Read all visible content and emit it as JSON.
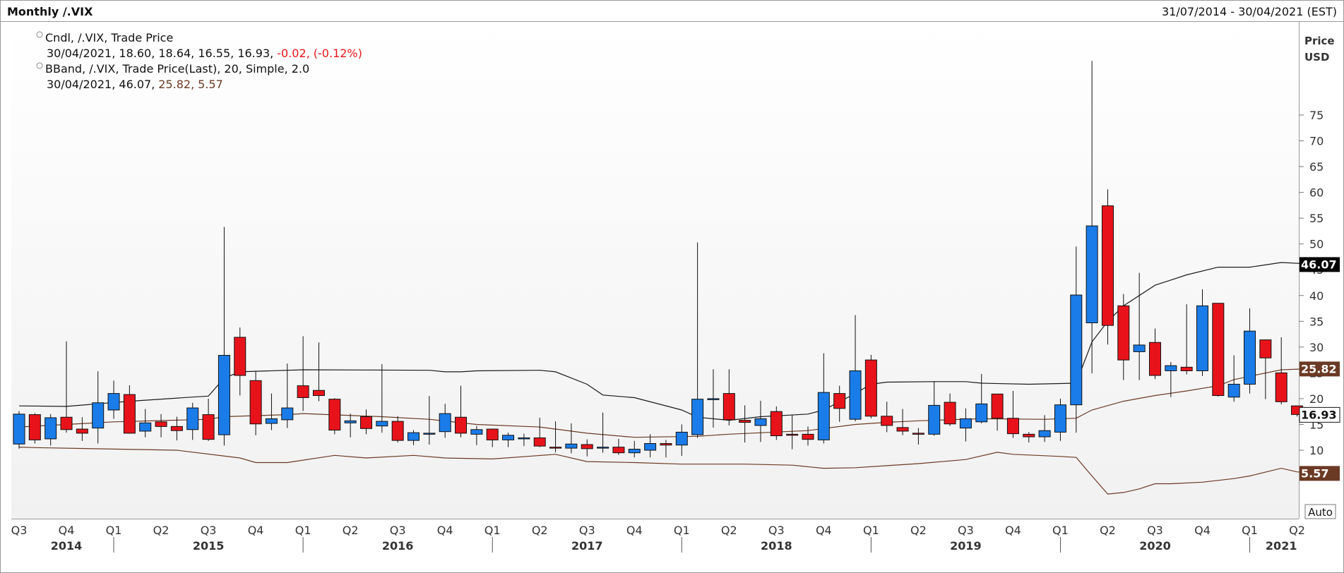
{
  "header": {
    "title": "Monthly /.VIX",
    "date_range": "31/07/2014 - 30/04/2021 (EST)"
  },
  "legend": {
    "candle_line1": "Cndl, /.VIX, Trade Price",
    "candle_line2_values": "30/04/2021, 18.60, 18.64, 16.55, 16.93,",
    "candle_line2_change": "-0.02, (-0.12%)",
    "bband_line1": "BBand, /.VIX, Trade Price(Last),  20, Simple, 2.0",
    "bband_line2_date": "30/04/2021, 46.07,",
    "bband_line2_mid": "25.82,",
    "bband_line2_low": "5.57"
  },
  "axis": {
    "price_label": "Price",
    "currency_label": "USD",
    "auto_button": "Auto"
  },
  "colors": {
    "up": "#1a7ce8",
    "down": "#e8131a",
    "upper_band": "#1a1a1a",
    "mid_band": "#6b3a24",
    "lower_band": "#6b3a24",
    "last_price_box": "#6b3a24",
    "upper_box": "#000000"
  },
  "chart_data": {
    "type": "candlestick",
    "title": "Monthly /.VIX",
    "y_axis_label": "Price USD",
    "y_ticks": [
      10,
      15,
      20,
      25,
      30,
      35,
      40,
      45,
      50,
      55,
      60,
      65,
      70,
      75
    ],
    "ylim": [
      1.5,
      82
    ],
    "x_quarter_ticks": [
      "Q3",
      "Q4",
      "Q1",
      "Q2",
      "Q3",
      "Q4",
      "Q1",
      "Q2",
      "Q3",
      "Q4",
      "Q1",
      "Q2",
      "Q3",
      "Q4",
      "Q1",
      "Q2",
      "Q3",
      "Q4",
      "Q1",
      "Q2",
      "Q3",
      "Q4",
      "Q1",
      "Q2",
      "Q3",
      "Q4",
      "Q1",
      "Q2"
    ],
    "x_year_labels": [
      "2014",
      "2015",
      "2016",
      "2017",
      "2018",
      "2019",
      "2020",
      "2021"
    ],
    "value_labels": {
      "upper_band": "46.07",
      "mid_band": "25.82",
      "last_price": "16.93",
      "lower_band": "5.57"
    },
    "candles": [
      {
        "month": "2014-07",
        "open": 11.2,
        "high": 17.6,
        "low": 10.3,
        "close": 17.0
      },
      {
        "month": "2014-08",
        "open": 16.9,
        "high": 17.2,
        "low": 11.3,
        "close": 12.0
      },
      {
        "month": "2014-09",
        "open": 12.2,
        "high": 17.0,
        "low": 10.9,
        "close": 16.3
      },
      {
        "month": "2014-10",
        "open": 16.4,
        "high": 31.1,
        "low": 13.4,
        "close": 14.0
      },
      {
        "month": "2014-11",
        "open": 14.1,
        "high": 16.4,
        "low": 11.8,
        "close": 13.3
      },
      {
        "month": "2014-12",
        "open": 14.3,
        "high": 25.3,
        "low": 11.3,
        "close": 19.2
      },
      {
        "month": "2015-01",
        "open": 17.8,
        "high": 23.5,
        "low": 16.1,
        "close": 21.0
      },
      {
        "month": "2015-02",
        "open": 20.8,
        "high": 22.6,
        "low": 13.2,
        "close": 13.3
      },
      {
        "month": "2015-03",
        "open": 13.7,
        "high": 18.0,
        "low": 12.5,
        "close": 15.3
      },
      {
        "month": "2015-04",
        "open": 15.5,
        "high": 17.0,
        "low": 12.5,
        "close": 14.6
      },
      {
        "month": "2015-05",
        "open": 14.6,
        "high": 16.5,
        "low": 11.9,
        "close": 13.8
      },
      {
        "month": "2015-06",
        "open": 14.0,
        "high": 19.2,
        "low": 12.0,
        "close": 18.2
      },
      {
        "month": "2015-07",
        "open": 16.9,
        "high": 20.0,
        "low": 11.8,
        "close": 12.1
      },
      {
        "month": "2015-08",
        "open": 13.0,
        "high": 53.3,
        "low": 10.9,
        "close": 28.4
      },
      {
        "month": "2015-09",
        "open": 31.9,
        "high": 33.8,
        "low": 20.6,
        "close": 24.5
      },
      {
        "month": "2015-10",
        "open": 23.5,
        "high": 25.4,
        "low": 12.9,
        "close": 15.1
      },
      {
        "month": "2015-11",
        "open": 15.2,
        "high": 21.0,
        "low": 13.9,
        "close": 16.1
      },
      {
        "month": "2015-12",
        "open": 15.9,
        "high": 26.8,
        "low": 14.3,
        "close": 18.2
      },
      {
        "month": "2016-01",
        "open": 22.5,
        "high": 32.1,
        "low": 17.6,
        "close": 20.2
      },
      {
        "month": "2016-02",
        "open": 21.6,
        "high": 30.9,
        "low": 19.5,
        "close": 20.6
      },
      {
        "month": "2016-03",
        "open": 19.9,
        "high": 20.1,
        "low": 13.1,
        "close": 13.9
      },
      {
        "month": "2016-04",
        "open": 15.3,
        "high": 17.1,
        "low": 12.5,
        "close": 15.7
      },
      {
        "month": "2016-05",
        "open": 16.5,
        "high": 17.9,
        "low": 13.1,
        "close": 14.2
      },
      {
        "month": "2016-06",
        "open": 14.7,
        "high": 26.7,
        "low": 13.4,
        "close": 15.6
      },
      {
        "month": "2016-07",
        "open": 15.6,
        "high": 16.6,
        "low": 11.5,
        "close": 11.9
      },
      {
        "month": "2016-08",
        "open": 11.9,
        "high": 13.9,
        "low": 11.0,
        "close": 13.4
      },
      {
        "month": "2016-09",
        "open": 13.2,
        "high": 20.5,
        "low": 11.1,
        "close": 13.3
      },
      {
        "month": "2016-10",
        "open": 13.6,
        "high": 19.0,
        "low": 12.4,
        "close": 17.1
      },
      {
        "month": "2016-11",
        "open": 16.4,
        "high": 22.5,
        "low": 12.5,
        "close": 13.3
      },
      {
        "month": "2016-12",
        "open": 13.1,
        "high": 14.7,
        "low": 11.0,
        "close": 14.0
      },
      {
        "month": "2017-01",
        "open": 14.1,
        "high": 14.2,
        "low": 10.6,
        "close": 11.99
      },
      {
        "month": "2017-02",
        "open": 12.0,
        "high": 13.4,
        "low": 10.6,
        "close": 12.9
      },
      {
        "month": "2017-03",
        "open": 12.4,
        "high": 13.2,
        "low": 10.8,
        "close": 12.4
      },
      {
        "month": "2017-04",
        "open": 12.4,
        "high": 16.3,
        "low": 10.6,
        "close": 10.8
      },
      {
        "month": "2017-05",
        "open": 10.6,
        "high": 15.6,
        "low": 9.6,
        "close": 10.4
      },
      {
        "month": "2017-06",
        "open": 10.4,
        "high": 15.2,
        "low": 9.4,
        "close": 11.2
      },
      {
        "month": "2017-07",
        "open": 11.1,
        "high": 12.1,
        "low": 8.8,
        "close": 10.3
      },
      {
        "month": "2017-08",
        "open": 10.5,
        "high": 17.3,
        "low": 9.5,
        "close": 10.6
      },
      {
        "month": "2017-09",
        "open": 10.6,
        "high": 12.2,
        "low": 9.1,
        "close": 9.5
      },
      {
        "month": "2017-10",
        "open": 9.5,
        "high": 11.8,
        "low": 8.6,
        "close": 10.2
      },
      {
        "month": "2017-11",
        "open": 10.0,
        "high": 13.1,
        "low": 8.6,
        "close": 11.3
      },
      {
        "month": "2017-12",
        "open": 11.3,
        "high": 12.0,
        "low": 8.6,
        "close": 11.0
      },
      {
        "month": "2018-01",
        "open": 11.0,
        "high": 15.0,
        "low": 8.9,
        "close": 13.5
      },
      {
        "month": "2018-02",
        "open": 13.0,
        "high": 50.3,
        "low": 12.4,
        "close": 19.9
      },
      {
        "month": "2018-03",
        "open": 19.9,
        "high": 25.7,
        "low": 14.4,
        "close": 20.0
      },
      {
        "month": "2018-04",
        "open": 21.0,
        "high": 25.7,
        "low": 14.8,
        "close": 15.9
      },
      {
        "month": "2018-05",
        "open": 15.8,
        "high": 18.7,
        "low": 11.5,
        "close": 15.4
      },
      {
        "month": "2018-06",
        "open": 14.8,
        "high": 19.6,
        "low": 11.6,
        "close": 16.1
      },
      {
        "month": "2018-07",
        "open": 17.5,
        "high": 18.5,
        "low": 12.0,
        "close": 12.8
      },
      {
        "month": "2018-08",
        "open": 13.1,
        "high": 16.9,
        "low": 10.2,
        "close": 12.9
      },
      {
        "month": "2018-09",
        "open": 13.1,
        "high": 14.6,
        "low": 10.9,
        "close": 12.1
      },
      {
        "month": "2018-10",
        "open": 12.0,
        "high": 28.8,
        "low": 11.3,
        "close": 21.2
      },
      {
        "month": "2018-11",
        "open": 21.0,
        "high": 22.5,
        "low": 15.5,
        "close": 18.1
      },
      {
        "month": "2018-12",
        "open": 16.0,
        "high": 36.2,
        "low": 15.6,
        "close": 25.4
      },
      {
        "month": "2019-01",
        "open": 27.5,
        "high": 28.5,
        "low": 16.2,
        "close": 16.6
      },
      {
        "month": "2019-02",
        "open": 16.6,
        "high": 19.4,
        "low": 13.5,
        "close": 14.8
      },
      {
        "month": "2019-03",
        "open": 14.4,
        "high": 18.0,
        "low": 12.9,
        "close": 13.7
      },
      {
        "month": "2019-04",
        "open": 13.3,
        "high": 14.3,
        "low": 11.1,
        "close": 13.1
      },
      {
        "month": "2019-05",
        "open": 13.1,
        "high": 23.4,
        "low": 12.8,
        "close": 18.7
      },
      {
        "month": "2019-06",
        "open": 19.3,
        "high": 21.0,
        "low": 14.7,
        "close": 15.1
      },
      {
        "month": "2019-07",
        "open": 14.3,
        "high": 18.1,
        "low": 11.7,
        "close": 16.1
      },
      {
        "month": "2019-08",
        "open": 15.5,
        "high": 24.8,
        "low": 15.2,
        "close": 18.98
      },
      {
        "month": "2019-09",
        "open": 20.9,
        "high": 20.9,
        "low": 13.8,
        "close": 16.2
      },
      {
        "month": "2019-10",
        "open": 16.2,
        "high": 21.5,
        "low": 12.4,
        "close": 13.2
      },
      {
        "month": "2019-11",
        "open": 13.1,
        "high": 13.5,
        "low": 11.5,
        "close": 12.6
      },
      {
        "month": "2019-12",
        "open": 12.6,
        "high": 16.8,
        "low": 11.6,
        "close": 13.8
      },
      {
        "month": "2020-01",
        "open": 13.5,
        "high": 19.99,
        "low": 11.8,
        "close": 18.8
      },
      {
        "month": "2020-02",
        "open": 18.8,
        "high": 49.5,
        "low": 13.4,
        "close": 40.1
      },
      {
        "month": "2020-03",
        "open": 34.7,
        "high": 85.5,
        "low": 24.9,
        "close": 53.5
      },
      {
        "month": "2020-04",
        "open": 57.4,
        "high": 60.6,
        "low": 30.5,
        "close": 34.2
      },
      {
        "month": "2020-05",
        "open": 38.0,
        "high": 40.3,
        "low": 23.6,
        "close": 27.5
      },
      {
        "month": "2020-06",
        "open": 29.1,
        "high": 44.4,
        "low": 23.6,
        "close": 30.4
      },
      {
        "month": "2020-07",
        "open": 30.9,
        "high": 33.6,
        "low": 23.8,
        "close": 24.5
      },
      {
        "month": "2020-08",
        "open": 25.4,
        "high": 27.1,
        "low": 20.3,
        "close": 26.4
      },
      {
        "month": "2020-09",
        "open": 26.1,
        "high": 38.3,
        "low": 24.7,
        "close": 25.4
      },
      {
        "month": "2020-10",
        "open": 25.4,
        "high": 41.2,
        "low": 24.4,
        "close": 38.0
      },
      {
        "month": "2020-11",
        "open": 38.5,
        "high": 38.5,
        "low": 20.4,
        "close": 20.6
      },
      {
        "month": "2020-12",
        "open": 20.3,
        "high": 28.4,
        "low": 19.4,
        "close": 22.8
      },
      {
        "month": "2021-01",
        "open": 22.8,
        "high": 37.5,
        "low": 21.0,
        "close": 33.1
      },
      {
        "month": "2021-02",
        "open": 31.4,
        "high": 31.4,
        "low": 19.9,
        "close": 27.9
      },
      {
        "month": "2021-03",
        "open": 25.0,
        "high": 31.9,
        "low": 18.9,
        "close": 19.4
      },
      {
        "month": "2021-04",
        "open": 18.6,
        "high": 18.64,
        "low": 16.55,
        "close": 16.93
      }
    ],
    "bollinger": {
      "period": 20,
      "stddev": 2.0,
      "upper": [
        [
          0,
          18.6
        ],
        [
          3,
          18.5
        ],
        [
          5,
          19.0
        ],
        [
          7,
          19.5
        ],
        [
          11,
          20.3
        ],
        [
          12,
          20.5
        ],
        [
          13,
          24.0
        ],
        [
          14,
          25.2
        ],
        [
          18,
          25.6
        ],
        [
          26,
          25.5
        ],
        [
          27,
          25.2
        ],
        [
          28,
          25.2
        ],
        [
          29,
          25.4
        ],
        [
          33,
          25.5
        ],
        [
          34,
          25.2
        ],
        [
          36,
          22.8
        ],
        [
          37,
          20.7
        ],
        [
          39,
          20.2
        ],
        [
          42,
          17.8
        ],
        [
          43,
          16.4
        ],
        [
          45,
          15.8
        ],
        [
          47,
          16.5
        ],
        [
          50,
          17.0
        ],
        [
          51,
          17.8
        ],
        [
          53,
          21.0
        ],
        [
          54,
          22.8
        ],
        [
          55,
          23.2
        ],
        [
          58,
          23.3
        ],
        [
          60,
          23.3
        ],
        [
          61,
          23.0
        ],
        [
          64,
          22.8
        ],
        [
          67,
          23.0
        ],
        [
          68,
          31.0
        ],
        [
          69,
          35.0
        ],
        [
          70,
          38.0
        ],
        [
          72,
          42.0
        ],
        [
          74,
          44.0
        ],
        [
          76,
          45.5
        ],
        [
          78,
          45.5
        ],
        [
          80,
          46.4
        ],
        [
          82,
          46.1
        ]
      ],
      "mid": [
        [
          0,
          14.5
        ],
        [
          6,
          15.5
        ],
        [
          12,
          16.0
        ],
        [
          13,
          16.5
        ],
        [
          15,
          16.7
        ],
        [
          17,
          16.9
        ],
        [
          18,
          17.1
        ],
        [
          23,
          16.5
        ],
        [
          26,
          16.0
        ],
        [
          29,
          15.0
        ],
        [
          33,
          14.5
        ],
        [
          36,
          13.3
        ],
        [
          39,
          12.5
        ],
        [
          43,
          12.7
        ],
        [
          45,
          13.1
        ],
        [
          50,
          13.8
        ],
        [
          53,
          15.0
        ],
        [
          55,
          15.4
        ],
        [
          57,
          15.7
        ],
        [
          61,
          16.1
        ],
        [
          65,
          16.0
        ],
        [
          67,
          16.2
        ],
        [
          68,
          17.8
        ],
        [
          70,
          19.5
        ],
        [
          72,
          20.6
        ],
        [
          74,
          21.5
        ],
        [
          76,
          22.5
        ],
        [
          77,
          23.7
        ],
        [
          80,
          25.6
        ],
        [
          82,
          25.82
        ]
      ],
      "lower": [
        [
          0,
          10.6
        ],
        [
          1,
          10.5
        ],
        [
          10,
          10.0
        ],
        [
          14,
          8.5
        ],
        [
          15,
          7.6
        ],
        [
          17,
          7.6
        ],
        [
          20,
          9.0
        ],
        [
          22,
          8.5
        ],
        [
          25,
          9.0
        ],
        [
          27,
          8.5
        ],
        [
          30,
          8.3
        ],
        [
          34,
          9.2
        ],
        [
          36,
          7.8
        ],
        [
          39,
          7.6
        ],
        [
          42,
          7.3
        ],
        [
          46,
          7.3
        ],
        [
          49,
          7.1
        ],
        [
          51,
          6.5
        ],
        [
          53,
          6.6
        ],
        [
          55,
          7.0
        ],
        [
          57,
          7.4
        ],
        [
          60,
          8.2
        ],
        [
          62,
          9.6
        ],
        [
          63,
          9.2
        ],
        [
          66,
          8.8
        ],
        [
          67,
          8.6
        ],
        [
          68,
          5.0
        ],
        [
          69,
          1.5
        ],
        [
          70,
          1.8
        ],
        [
          71,
          2.5
        ],
        [
          72,
          3.5
        ],
        [
          73,
          3.5
        ],
        [
          75,
          3.8
        ],
        [
          77,
          4.5
        ],
        [
          78,
          5.0
        ],
        [
          80,
          6.5
        ],
        [
          81,
          5.8
        ],
        [
          82,
          5.57
        ]
      ]
    }
  }
}
